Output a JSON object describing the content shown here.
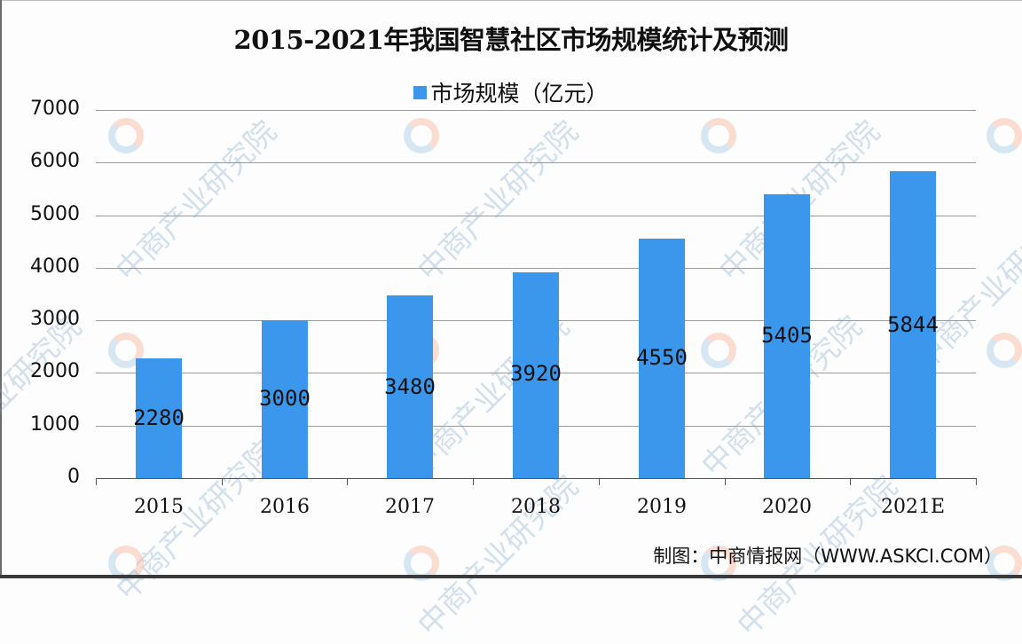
{
  "title": "2015-2021年我国智慧社区市场规模统计及预测",
  "legend": {
    "label": "市场规模（亿元）",
    "color": "#3a97ec"
  },
  "source": "制图：中商情报网（WWW.ASKCI.COM）",
  "watermark": {
    "text": "中商产业研究院"
  },
  "colors": {
    "bar": "#3a97ec",
    "grid": "#9a9a9a",
    "axis": "#555555",
    "text": "#111111"
  },
  "y_ticks": [
    "7000",
    "6000",
    "5000",
    "4000",
    "3000",
    "2000",
    "1000",
    "0"
  ],
  "x_ticks": [
    "2015",
    "2016",
    "2017",
    "2018",
    "2019",
    "2020",
    "2021E"
  ],
  "bar_labels": [
    "2280",
    "3000",
    "3480",
    "3920",
    "4550",
    "5405",
    "5844"
  ],
  "chart_data": {
    "type": "bar",
    "title": "2015-2021年我国智慧社区市场规模统计及预测",
    "categories": [
      "2015",
      "2016",
      "2017",
      "2018",
      "2019",
      "2020",
      "2021E"
    ],
    "series": [
      {
        "name": "市场规模（亿元）",
        "values": [
          2280,
          3000,
          3480,
          3920,
          4550,
          5405,
          5844
        ]
      }
    ],
    "xlabel": "",
    "ylabel": "",
    "ylim": [
      0,
      7000
    ],
    "yticks": [
      0,
      1000,
      2000,
      3000,
      4000,
      5000,
      6000,
      7000
    ],
    "grid": true,
    "legend_position": "top",
    "data_labels": true,
    "annotations": [
      "制图：中商情报网（WWW.ASKCI.COM）"
    ]
  }
}
